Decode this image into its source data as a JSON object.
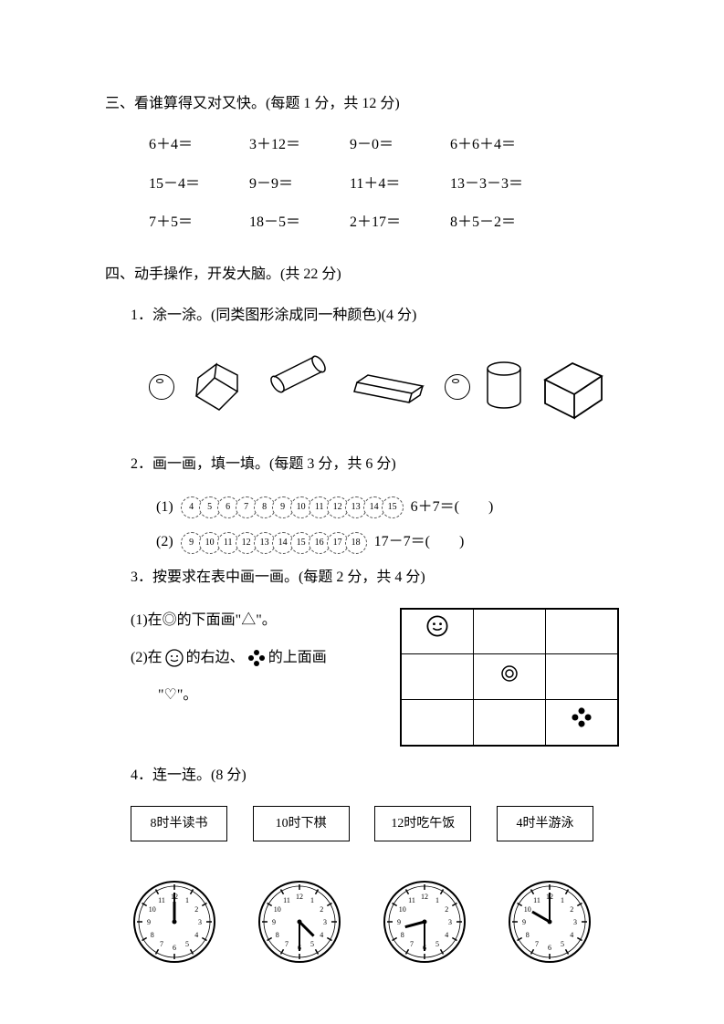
{
  "section3": {
    "title": "三、看谁算得又对又快。(每题 1 分，共 12 分)",
    "rows": [
      [
        "6＋4＝",
        "3＋12＝",
        "9－0＝",
        "6＋6＋4＝"
      ],
      [
        "15－4＝",
        "9－9＝",
        "11＋4＝",
        "13－3－3＝"
      ],
      [
        "7＋5＝",
        "18－5＝",
        "2＋17＝",
        "8＋5－2＝"
      ]
    ]
  },
  "section4": {
    "title": "四、动手操作，开发大脑。(共 22 分)",
    "q1": {
      "title": "1．涂一涂。(同类图形涂成同一种颜色)(4 分)"
    },
    "q2": {
      "title": "2．画一画，填一填。(每题 3 分，共 6 分)",
      "items": [
        {
          "label": "(1)",
          "beads": [
            "4",
            "5",
            "6",
            "7",
            "8",
            "9",
            "10",
            "11",
            "12",
            "13",
            "14",
            "15"
          ],
          "eq": "6＋7＝(　　)"
        },
        {
          "label": "(2)",
          "beads": [
            "9",
            "10",
            "11",
            "12",
            "13",
            "14",
            "15",
            "16",
            "17",
            "18"
          ],
          "eq": "17－7＝(　　)"
        }
      ]
    },
    "q3": {
      "title": "3．按要求在表中画一画。(每题 2 分，共 4 分)",
      "line1a": "(1)在◎的下面画\"△\"。",
      "line2a": "(2)在",
      "line2b": "的右边、",
      "line2c": "的上面画",
      "line3": "\"♡\"。"
    },
    "q4": {
      "title": "4．连一连。(8 分)",
      "boxes": [
        "8时半读书",
        "10时下棋",
        "12时吃午饭",
        "4时半游泳"
      ],
      "clocks": [
        {
          "hour": 12,
          "minute": 0
        },
        {
          "hour": 4,
          "minute": 30
        },
        {
          "hour": 8,
          "minute": 30
        },
        {
          "hour": 10,
          "minute": 0
        }
      ]
    }
  },
  "colors": {
    "stroke": "#000000",
    "bg": "#ffffff"
  }
}
